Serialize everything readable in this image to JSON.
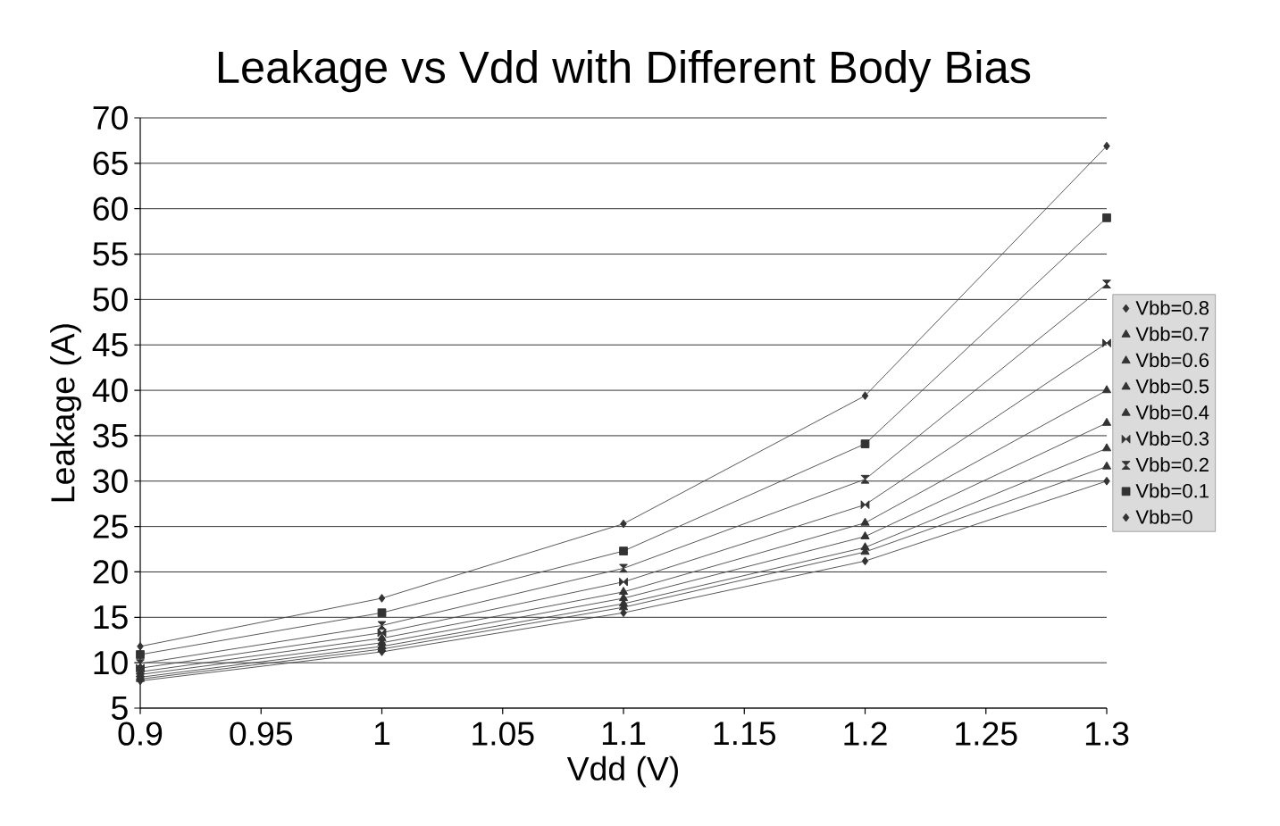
{
  "chart_data": {
    "type": "line",
    "title": "Leakage vs Vdd with Different Body Bias",
    "xlabel": "Vdd (V)",
    "ylabel": "Leakage (A)",
    "x": [
      0.9,
      1.0,
      1.1,
      1.2,
      1.3
    ],
    "xlim": [
      0.9,
      1.3
    ],
    "xticks": [
      0.9,
      0.95,
      1,
      1.05,
      1.1,
      1.15,
      1.2,
      1.25,
      1.3
    ],
    "ylim": [
      5,
      70
    ],
    "yticks": [
      5,
      10,
      15,
      20,
      25,
      30,
      35,
      40,
      45,
      50,
      55,
      60,
      65,
      70
    ],
    "grid": "y",
    "legend": "right",
    "line_style": "solid",
    "series": [
      {
        "name": "Vbb=0.8",
        "color": "#333333",
        "marker": "diamond",
        "values": [
          8.0,
          11.2,
          15.5,
          21.2,
          30.0
        ]
      },
      {
        "name": "Vbb=0.7",
        "color": "#333333",
        "marker": "triangle",
        "values": [
          8.2,
          11.5,
          16.1,
          22.2,
          31.6
        ]
      },
      {
        "name": "Vbb=0.6",
        "color": "#333333",
        "marker": "triangle",
        "values": [
          8.4,
          11.8,
          16.5,
          22.7,
          33.6
        ]
      },
      {
        "name": "Vbb=0.5",
        "color": "#333333",
        "marker": "triangle",
        "values": [
          8.7,
          12.2,
          17.1,
          23.9,
          36.4
        ]
      },
      {
        "name": "Vbb=0.4",
        "color": "#333333",
        "marker": "triangle",
        "values": [
          9.0,
          12.7,
          17.8,
          25.4,
          40.0
        ]
      },
      {
        "name": "Vbb=0.3",
        "color": "#333333",
        "marker": "diamond",
        "values": [
          9.4,
          13.3,
          18.9,
          27.4,
          45.2
        ]
      },
      {
        "name": "Vbb=0.2",
        "color": "#333333",
        "marker": "diamond",
        "values": [
          9.9,
          14.1,
          20.4,
          30.2,
          51.7
        ]
      },
      {
        "name": "Vbb=0.1",
        "color": "#333333",
        "marker": "square",
        "values": [
          10.9,
          15.5,
          22.3,
          34.1,
          59.0
        ]
      },
      {
        "name": "Vbb=0",
        "color": "#333333",
        "marker": "diamond",
        "values": [
          11.8,
          17.1,
          25.3,
          39.4,
          66.9
        ]
      }
    ]
  }
}
